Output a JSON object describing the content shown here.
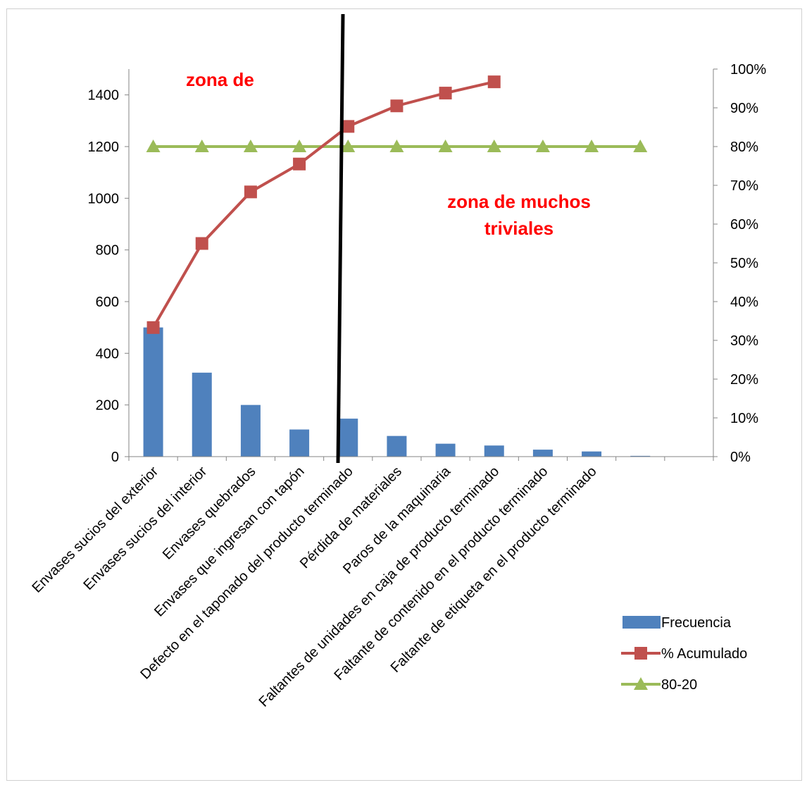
{
  "chart_data": {
    "type": "bar",
    "categories": [
      "Envases sucios del exterior",
      "Envases sucios del interior",
      "Envases quebrados",
      "Envases que ingresan con tapón",
      "Defecto en el taponado del producto terminado",
      "Pérdida de materiales",
      "Paros de la maquinaria",
      "Faltantes de unidades en caja de producto terminado",
      "Faltante de contenido en el producto terminado",
      "Faltante de etiqueta en el producto terminado",
      "",
      ""
    ],
    "series": [
      {
        "name": "Frecuencia",
        "type": "bar",
        "axis": "left",
        "color": "#4f81bd",
        "values": [
          500,
          325,
          200,
          105,
          147,
          80,
          50,
          43,
          27,
          20,
          3,
          0
        ]
      },
      {
        "name": "% Acumulado",
        "type": "line",
        "axis": "right",
        "color": "#c0504d",
        "marker": "square",
        "values": [
          33.3,
          55,
          68.3,
          75.5,
          85.2,
          90.5,
          93.8,
          96.7,
          null,
          null,
          null,
          null
        ]
      },
      {
        "name": "80-20",
        "type": "line",
        "axis": "right",
        "color": "#9bbb59",
        "marker": "triangle",
        "values": [
          80,
          80,
          80,
          80,
          80,
          80,
          80,
          80,
          80,
          80,
          80,
          null
        ]
      }
    ],
    "y_left": {
      "range": [
        0,
        1500
      ],
      "ticks": [
        0,
        200,
        400,
        600,
        800,
        1000,
        1200,
        1400
      ]
    },
    "y_right": {
      "range": [
        0,
        100
      ],
      "ticks": [
        "0%",
        "10%",
        "20%",
        "30%",
        "40%",
        "50%",
        "60%",
        "70%",
        "80%",
        "90%",
        "100%"
      ]
    },
    "annotations": [
      "zona de",
      "zona de muchos",
      "triviales"
    ],
    "legend_position": "bottom-right",
    "grid": false
  }
}
